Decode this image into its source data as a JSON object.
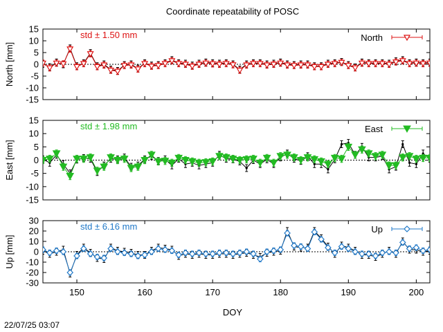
{
  "title": "Coordinate repeatability of POSC",
  "timestamp": "22/07/25 03:07",
  "xlabel": "DOY",
  "x_ticks": [
    150,
    160,
    170,
    180,
    190,
    200
  ],
  "x_range": [
    145,
    202
  ],
  "chart_data": [
    {
      "type": "line",
      "ylabel": "North [mm]",
      "ylim": [
        -15,
        15
      ],
      "y_ticks": [
        15,
        10,
        5,
        0,
        -5,
        -10,
        -15
      ],
      "std_label": "std ± 1.50 mm",
      "legend": "North",
      "color": "#dd1111",
      "marker": "triangle-down-open",
      "x": [
        145,
        146,
        147,
        148,
        149,
        150,
        151,
        152,
        153,
        154,
        155,
        156,
        157,
        158,
        159,
        160,
        161,
        162,
        163,
        164,
        165,
        166,
        167,
        168,
        169,
        170,
        171,
        172,
        173,
        174,
        175,
        176,
        177,
        178,
        179,
        180,
        181,
        182,
        183,
        184,
        185,
        186,
        187,
        188,
        189,
        190,
        191,
        192,
        193,
        194,
        195,
        196,
        197,
        198,
        199,
        200,
        201,
        202
      ],
      "values": [
        0.5,
        -1.5,
        0.5,
        0.2,
        6.5,
        -1.0,
        0.3,
        4.5,
        -1.0,
        -0.3,
        -2.5,
        -3.0,
        -0.5,
        -0.3,
        -2.0,
        0.3,
        -0.8,
        -0.5,
        0.3,
        1.5,
        0.3,
        0.0,
        -0.8,
        0.0,
        0.5,
        0.2,
        0.0,
        0.3,
        -0.2,
        -2.5,
        -0.3,
        0.3,
        0.3,
        -0.3,
        0.0,
        0.5,
        -0.3,
        -0.5,
        -0.3,
        -0.3,
        -1.0,
        -1.0,
        0.0,
        0.3,
        0.8,
        -0.5,
        -1.5,
        0.5,
        0.3,
        0.3,
        0.3,
        0.0,
        1.0,
        1.5,
        0.3,
        0.5,
        0.3,
        0.5
      ],
      "black_values": [
        0.2,
        -1.2,
        0.8,
        0.0,
        6.8,
        -0.8,
        0.5,
        4.8,
        -0.8,
        0.0,
        -2.2,
        -2.8,
        -0.3,
        0.0,
        -1.8,
        0.5,
        -0.5,
        -0.3,
        0.5,
        1.8,
        0.5,
        0.3,
        -0.5,
        0.3,
        0.8,
        0.5,
        0.3,
        0.5,
        0.0,
        -2.2,
        0.0,
        0.5,
        0.5,
        0.0,
        0.3,
        0.8,
        0.0,
        -0.3,
        0.0,
        0.0,
        -0.8,
        -0.8,
        0.3,
        0.5,
        1.0,
        -0.3,
        -1.3,
        0.8,
        0.5,
        0.5,
        0.5,
        0.3,
        1.3,
        1.8,
        0.5,
        0.8,
        0.5,
        0.8
      ]
    },
    {
      "type": "line",
      "ylabel": "East [mm]",
      "ylim": [
        -15,
        15
      ],
      "y_ticks": [
        15,
        10,
        5,
        0,
        -5,
        -10,
        -15
      ],
      "std_label": "std ± 1.98 mm",
      "legend": "East",
      "color": "#22bb22",
      "marker": "triangle-down-filled",
      "x": [
        145,
        146,
        147,
        148,
        149,
        150,
        151,
        152,
        153,
        154,
        155,
        156,
        157,
        158,
        159,
        160,
        161,
        162,
        163,
        164,
        165,
        166,
        167,
        168,
        169,
        170,
        171,
        172,
        173,
        174,
        175,
        176,
        177,
        178,
        179,
        180,
        181,
        182,
        183,
        184,
        185,
        186,
        187,
        188,
        189,
        190,
        191,
        192,
        193,
        194,
        195,
        196,
        197,
        198,
        199,
        200,
        201,
        202
      ],
      "values": [
        0.0,
        0.5,
        2.5,
        -2.5,
        -6.0,
        0.5,
        0.5,
        1.0,
        -4.0,
        -2.5,
        1.0,
        0.0,
        0.5,
        -3.0,
        -2.5,
        0.0,
        2.0,
        -0.5,
        -0.3,
        -1.0,
        0.8,
        0.0,
        -0.5,
        -1.0,
        -0.8,
        -0.5,
        1.5,
        1.0,
        0.5,
        0.0,
        0.3,
        0.5,
        -1.0,
        0.8,
        -1.0,
        1.5,
        2.0,
        1.0,
        0.0,
        1.0,
        0.3,
        -0.5,
        -1.5,
        0.8,
        0.5,
        5.0,
        2.0,
        4.0,
        2.5,
        1.5,
        2.0,
        -2.0,
        -2.0,
        1.0,
        1.5,
        0.5,
        0.8,
        0.8
      ],
      "black_values": [
        0.3,
        -1.0,
        2.0,
        -1.5,
        -5.0,
        0.2,
        0.8,
        0.5,
        -4.5,
        -2.0,
        0.5,
        0.3,
        1.0,
        -2.5,
        -2.0,
        0.3,
        1.5,
        -0.3,
        0.3,
        -2.0,
        0.5,
        -1.5,
        -1.0,
        -2.0,
        -1.5,
        -1.0,
        2.0,
        0.5,
        0.3,
        -0.5,
        -3.0,
        0.0,
        -1.5,
        0.3,
        -1.5,
        1.0,
        2.5,
        0.5,
        -0.3,
        1.5,
        -1.5,
        -1.5,
        -3.5,
        0.3,
        6.0,
        6.5,
        2.0,
        5.0,
        1.0,
        1.0,
        1.5,
        -3.5,
        -2.5,
        6.0,
        -1.0,
        -1.5,
        2.5,
        0.5
      ]
    },
    {
      "type": "line",
      "ylabel": "Up [mm]",
      "ylim": [
        -30,
        30
      ],
      "y_ticks": [
        30,
        20,
        10,
        0,
        -10,
        -20,
        -30
      ],
      "std_label": "std ± 6.16 mm",
      "legend": "Up",
      "color": "#1f78c8",
      "marker": "diamond-open",
      "x": [
        145,
        146,
        147,
        148,
        149,
        150,
        151,
        152,
        153,
        154,
        155,
        156,
        157,
        158,
        159,
        160,
        161,
        162,
        163,
        164,
        165,
        166,
        167,
        168,
        169,
        170,
        171,
        172,
        173,
        174,
        175,
        176,
        177,
        178,
        179,
        180,
        181,
        182,
        183,
        184,
        185,
        186,
        187,
        188,
        189,
        190,
        191,
        192,
        193,
        194,
        195,
        196,
        197,
        198,
        199,
        200,
        201,
        202
      ],
      "values": [
        2,
        -1,
        1,
        0,
        -20,
        -4,
        3,
        -2,
        -5,
        -6,
        3,
        0,
        -1,
        -2,
        -4,
        -3,
        0,
        3,
        2,
        1,
        -3,
        -1,
        -2,
        -1,
        -2,
        -2,
        -1,
        -1,
        -2,
        -1,
        0,
        -2,
        -7,
        0,
        1,
        2,
        18,
        6,
        5,
        3,
        19,
        12,
        4,
        -1,
        5,
        3,
        0,
        -2,
        -2,
        -4,
        -1,
        0,
        -1,
        9,
        3,
        4,
        1,
        2
      ],
      "black_values": [
        1,
        -2,
        0,
        2,
        -21,
        -3,
        4,
        -1,
        -6,
        -7,
        4,
        1,
        0,
        -1,
        -3,
        -3,
        1,
        4,
        3,
        2,
        -4,
        -2,
        -3,
        -2,
        -3,
        -3,
        -2,
        -2,
        -3,
        -2,
        -1,
        -3,
        -5,
        -1,
        0,
        1,
        20,
        5,
        4,
        4,
        20,
        13,
        5,
        -2,
        6,
        4,
        1,
        -3,
        -3,
        -5,
        -2,
        1,
        -2,
        10,
        2,
        2,
        0,
        1
      ]
    }
  ]
}
